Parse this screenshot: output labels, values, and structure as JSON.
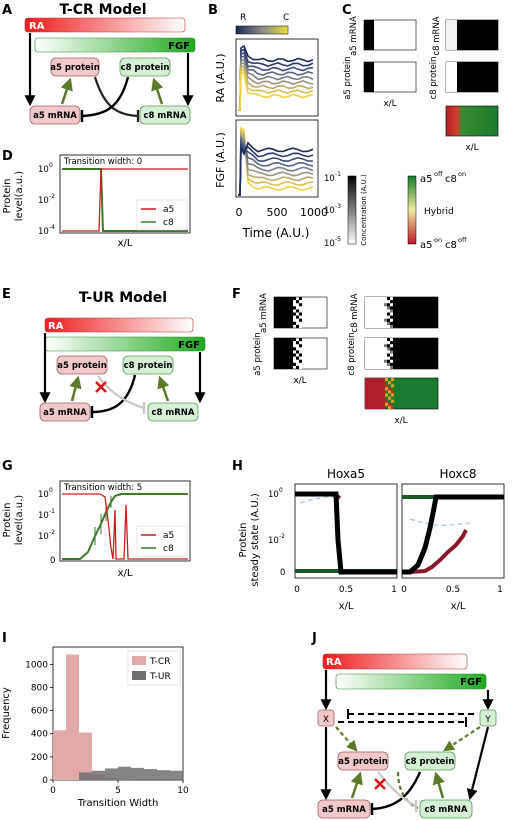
{
  "panel_letters": [
    "A",
    "B",
    "C",
    "D",
    "E",
    "F",
    "G",
    "H",
    "I",
    "J"
  ],
  "panelA": {
    "title": "T-CR Model",
    "ra": "RA",
    "fgf": "FGF",
    "a5_protein": "a5 protein",
    "c8_protein": "c8 protein",
    "a5_mrna": "a5 mRNA",
    "c8_mrna": "c8 mRNA"
  },
  "panelB": {
    "colorbar_left": "R",
    "colorbar_right": "C",
    "ylabel_top": "RA (A.U.)",
    "ylabel_bottom": "FGF (A.U.)",
    "xlabel": "Time (A.U.)",
    "xticks": [
      "0",
      "500",
      "1000"
    ]
  },
  "panelC": {
    "row1_left_label": "a5 mRNA",
    "row1_right_label": "c8 mRNA",
    "row2_left_label": "a5 protein",
    "row2_right_label": "c8 protein",
    "xlabel_left": "x/L",
    "xlabel_right": "x/L",
    "conc_cbar_ticks": [
      "10",
      "10",
      "10"
    ],
    "conc_cbar_exps": [
      "-1",
      "-3",
      "-5"
    ],
    "conc_cbar_label": "Concentration (A.U.)",
    "state_top_base1": "a5",
    "state_top_sup1": "off",
    "state_top_base2": "c8",
    "state_top_sup2": "on",
    "state_mid": "Hybrid",
    "state_bot_base1": "a5",
    "state_bot_sup1": "on",
    "state_bot_base2": "c8",
    "state_bot_sup2": "off"
  },
  "panelD": {
    "annotation": "Transition width: 0",
    "ylabel1": "Protein",
    "ylabel2": "level(a.u.)",
    "xlabel": "x/L",
    "yticks": [
      "10",
      "10",
      "10"
    ],
    "yexps": [
      "0",
      "-2",
      "-4"
    ],
    "legend": [
      "a5",
      "c8"
    ]
  },
  "panelE": {
    "title": "T-UR Model",
    "ra": "RA",
    "fgf": "FGF",
    "a5_protein": "a5 protein",
    "c8_protein": "c8 protein",
    "a5_mrna": "a5 mRNA",
    "c8_mrna": "c8 mRNA"
  },
  "panelF": {
    "row1_left_label": "a5 mRNA",
    "row1_right_label": "c8 mRNA",
    "row2_left_label": "a5 protein",
    "row2_right_label": "c8 protein",
    "xlabel_left": "x/L",
    "xlabel_right": "x/L"
  },
  "panelG": {
    "annotation": "Transition width: 5",
    "ylabel1": "Protein",
    "ylabel2": "level(a.u.)",
    "xlabel": "x/L",
    "yticks": [
      "10",
      "10",
      "10",
      "0"
    ],
    "yexps": [
      "0",
      "-1",
      "-2",
      ""
    ],
    "legend": [
      "a5",
      "c8"
    ]
  },
  "panelH": {
    "title_left": "Hoxa5",
    "title_right": "Hoxc8",
    "ylabel1": "Protein",
    "ylabel2": "steady state (A.U.)",
    "xlabel_left": "x/L",
    "xlabel_right": "x/L",
    "yticks": [
      "10",
      "10",
      "0"
    ],
    "yexps": [
      "0",
      "-2",
      ""
    ],
    "xticks": [
      "0",
      "0.5",
      "1"
    ]
  },
  "panelI": {
    "ylabel": "Frequency",
    "xlabel": "Transition Width",
    "yticks": [
      "0",
      "200",
      "400",
      "600",
      "800",
      "1000"
    ],
    "xticks": [
      "0",
      "5",
      "10"
    ],
    "legend": [
      "T-CR",
      "T-UR"
    ],
    "colors": {
      "tcr": "#e3a8a8",
      "tur": "#6e6e6e"
    }
  },
  "panelJ": {
    "ra": "RA",
    "fgf": "FGF",
    "x": "X",
    "y": "Y",
    "a5_protein": "a5 protein",
    "c8_protein": "c8 protein",
    "a5_mrna": "a5 mRNA",
    "c8_mrna": "c8 mRNA"
  },
  "chart_data": [
    {
      "type": "histogram",
      "xlabel": "Transition Width",
      "ylabel": "Frequency",
      "xlim": [
        0,
        10
      ],
      "ylim": [
        0,
        1150
      ],
      "bin_width": 1,
      "series": [
        {
          "name": "T-CR",
          "bins": [
            [
              0,
              1,
              430
            ],
            [
              1,
              2,
              1085
            ],
            [
              2,
              3,
              410
            ],
            [
              3,
              4,
              50
            ],
            [
              4,
              5,
              15
            ],
            [
              5,
              6,
              5
            ]
          ]
        },
        {
          "name": "T-UR",
          "bins": [
            [
              2,
              3,
              65
            ],
            [
              3,
              4,
              80
            ],
            [
              4,
              5,
              100
            ],
            [
              5,
              6,
              115
            ],
            [
              6,
              7,
              105
            ],
            [
              7,
              8,
              95
            ],
            [
              8,
              9,
              85
            ],
            [
              9,
              10,
              80
            ]
          ]
        }
      ]
    }
  ]
}
